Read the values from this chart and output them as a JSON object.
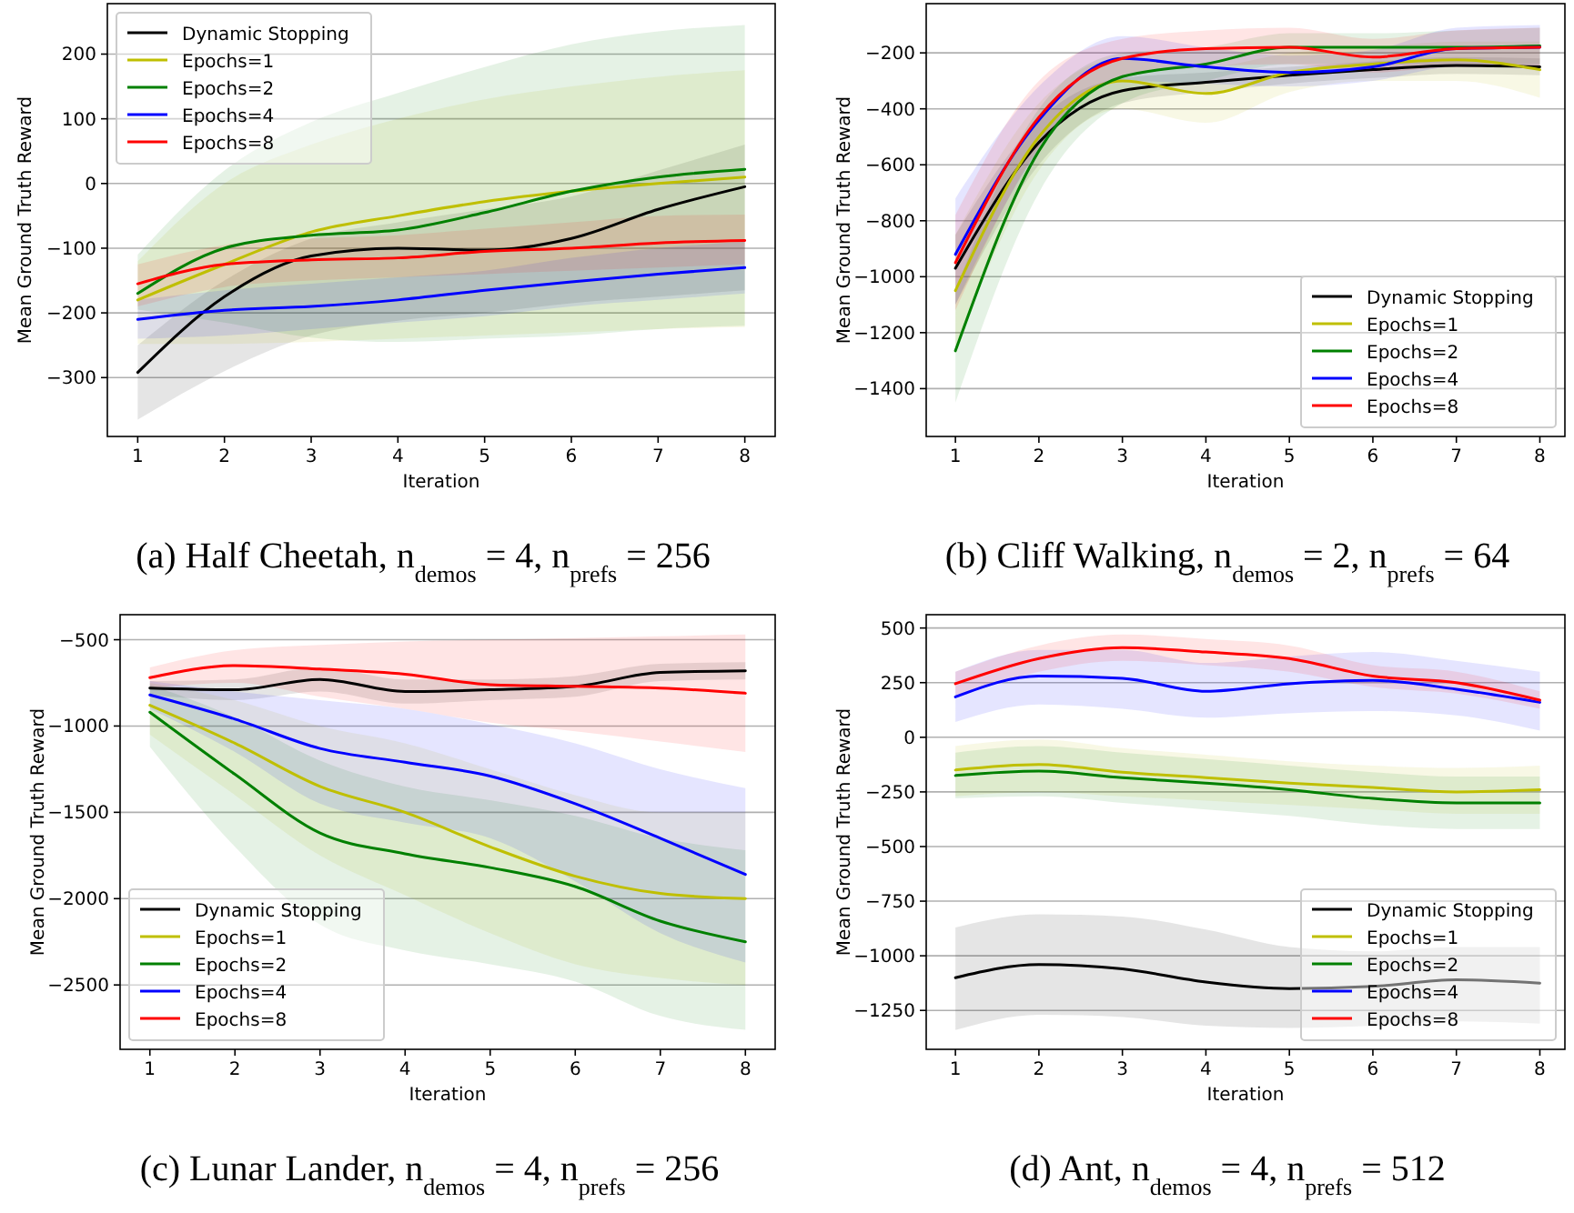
{
  "chart_data": [
    {
      "type": "line",
      "title": "(a) Half Cheetah, n$_{demos}$ = 4, n$_{prefs}$ = 256",
      "xlabel": "Iteration",
      "ylabel": "Mean Ground Truth Reward",
      "x": [
        1,
        2,
        3,
        4,
        5,
        6,
        7,
        8
      ],
      "xlim": [
        0.65,
        8.35
      ],
      "ylim": [
        -391,
        278
      ],
      "xticks": [
        1,
        2,
        3,
        4,
        5,
        6,
        7,
        8
      ],
      "yticks": [
        {
          "value": -300,
          "label": "−300"
        },
        {
          "value": -200,
          "label": "−200"
        },
        {
          "value": -100,
          "label": "−100"
        },
        0,
        100,
        200
      ],
      "grid": "y",
      "legend": "top left",
      "series": [
        {
          "name": "Dynamic Stopping",
          "color": "#000000",
          "values": [
            -292,
            -175,
            -112,
            -100,
            -103,
            -85,
            -40,
            -5
          ],
          "lower": [
            -365,
            -290,
            -235,
            -212,
            -200,
            -185,
            -175,
            -165
          ],
          "upper": [
            -250,
            -150,
            -85,
            -60,
            -40,
            -20,
            20,
            60
          ]
        },
        {
          "name": "Epochs=1",
          "color": "#bfbf00",
          "values": [
            -180,
            -125,
            -75,
            -50,
            -28,
            -12,
            0,
            10
          ],
          "lower": [
            -248,
            -248,
            -245,
            -240,
            -235,
            -230,
            -225,
            -222
          ],
          "upper": [
            -120,
            0,
            60,
            100,
            130,
            150,
            165,
            175
          ]
        },
        {
          "name": "Epochs=2",
          "color": "#008000",
          "values": [
            -170,
            -100,
            -80,
            -72,
            -45,
            -12,
            10,
            22
          ],
          "lower": [
            -195,
            -215,
            -238,
            -245,
            -240,
            -235,
            -225,
            -220
          ],
          "upper": [
            -110,
            20,
            95,
            140,
            180,
            215,
            235,
            245
          ]
        },
        {
          "name": "Epochs=4",
          "color": "#0000ff",
          "values": [
            -210,
            -196,
            -190,
            -180,
            -165,
            -152,
            -140,
            -130
          ],
          "lower": [
            -240,
            -235,
            -225,
            -215,
            -205,
            -190,
            -180,
            -170
          ],
          "upper": [
            -180,
            -165,
            -155,
            -145,
            -135,
            -115,
            -100,
            -90
          ]
        },
        {
          "name": "Epochs=8",
          "color": "#ff0000",
          "values": [
            -155,
            -125,
            -118,
            -115,
            -105,
            -100,
            -92,
            -88
          ],
          "lower": [
            -190,
            -160,
            -150,
            -145,
            -140,
            -135,
            -130,
            -125
          ],
          "upper": [
            -125,
            -95,
            -85,
            -80,
            -70,
            -60,
            -50,
            -48
          ]
        }
      ]
    },
    {
      "type": "line",
      "title": "(b) Cliff Walking, n$_{demos}$ = 2, n$_{prefs}$ = 64",
      "xlabel": "Iteration",
      "ylabel": "Mean Ground Truth Reward",
      "x": [
        1,
        2,
        3,
        4,
        5,
        6,
        7,
        8
      ],
      "xlim": [
        0.65,
        8.3
      ],
      "ylim": [
        -1571,
        -24
      ],
      "xticks": [
        1,
        2,
        3,
        4,
        5,
        6,
        7,
        8
      ],
      "yticks": [
        {
          "value": -1400,
          "label": "−1400"
        },
        {
          "value": -1200,
          "label": "−1200"
        },
        {
          "value": -1000,
          "label": "−1000"
        },
        {
          "value": -800,
          "label": "−800"
        },
        {
          "value": -600,
          "label": "−600"
        },
        {
          "value": -400,
          "label": "−400"
        },
        {
          "value": -200,
          "label": "−200"
        }
      ],
      "grid": "y",
      "legend": "bottom right",
      "series": [
        {
          "name": "Dynamic Stopping",
          "color": "#000000",
          "values": [
            -970,
            -520,
            -335,
            -305,
            -280,
            -260,
            -245,
            -250
          ],
          "lower": [
            -1100,
            -600,
            -380,
            -340,
            -310,
            -290,
            -275,
            -280
          ],
          "upper": [
            -850,
            -440,
            -290,
            -270,
            -250,
            -230,
            -215,
            -220
          ]
        },
        {
          "name": "Epochs=1",
          "color": "#bfbf00",
          "values": [
            -1050,
            -500,
            -300,
            -345,
            -270,
            -240,
            -225,
            -260
          ],
          "lower": [
            -1250,
            -620,
            -400,
            -450,
            -340,
            -300,
            -300,
            -360
          ],
          "upper": [
            -850,
            -380,
            -220,
            -250,
            -200,
            -180,
            -160,
            -160
          ]
        },
        {
          "name": "Epochs=2",
          "color": "#008000",
          "values": [
            -1265,
            -550,
            -285,
            -240,
            -180,
            -180,
            -180,
            -175
          ],
          "lower": [
            -1450,
            -700,
            -380,
            -300,
            -240,
            -240,
            -240,
            -240
          ],
          "upper": [
            -1050,
            -400,
            -200,
            -180,
            -130,
            -130,
            -120,
            -110
          ]
        },
        {
          "name": "Epochs=4",
          "color": "#0000ff",
          "values": [
            -920,
            -440,
            -220,
            -250,
            -270,
            -250,
            -185,
            -180
          ],
          "lower": [
            -1100,
            -550,
            -300,
            -310,
            -320,
            -300,
            -250,
            -250
          ],
          "upper": [
            -720,
            -320,
            -140,
            -180,
            -210,
            -190,
            -110,
            -100
          ]
        },
        {
          "name": "Epochs=8",
          "color": "#ff0000",
          "values": [
            -950,
            -430,
            -220,
            -185,
            -180,
            -215,
            -185,
            -180
          ],
          "lower": [
            -1120,
            -540,
            -290,
            -250,
            -240,
            -270,
            -250,
            -250
          ],
          "upper": [
            -780,
            -300,
            -150,
            -120,
            -110,
            -150,
            -120,
            -110
          ]
        }
      ]
    },
    {
      "type": "line",
      "title": "(c) Lunar Lander, n$_{demos}$ = 4, n$_{prefs}$ = 256",
      "xlabel": "Iteration",
      "ylabel": "Mean Ground Truth Reward",
      "x": [
        1,
        2,
        3,
        4,
        5,
        6,
        7,
        8
      ],
      "xlim": [
        0.65,
        8.35
      ],
      "ylim": [
        -2873,
        -355
      ],
      "xticks": [
        1,
        2,
        3,
        4,
        5,
        6,
        7,
        8
      ],
      "yticks": [
        {
          "value": -2500,
          "label": "−2500"
        },
        {
          "value": -2000,
          "label": "−2000"
        },
        {
          "value": -1500,
          "label": "−1500"
        },
        {
          "value": -1000,
          "label": "−1000"
        },
        {
          "value": -500,
          "label": "−500"
        }
      ],
      "grid": "y",
      "legend": "bottom left",
      "series": [
        {
          "name": "Dynamic Stopping",
          "color": "#000000",
          "values": [
            -780,
            -790,
            -730,
            -800,
            -790,
            -770,
            -690,
            -680
          ],
          "lower": [
            -820,
            -850,
            -800,
            -870,
            -850,
            -830,
            -740,
            -730
          ],
          "upper": [
            -740,
            -730,
            -660,
            -730,
            -730,
            -710,
            -640,
            -630
          ]
        },
        {
          "name": "Epochs=1",
          "color": "#bfbf00",
          "values": [
            -880,
            -1100,
            -1350,
            -1500,
            -1700,
            -1870,
            -1970,
            -2000
          ],
          "lower": [
            -1050,
            -1400,
            -1750,
            -1980,
            -2200,
            -2380,
            -2460,
            -2500
          ],
          "upper": [
            -750,
            -850,
            -1000,
            -1100,
            -1250,
            -1400,
            -1500,
            -1500
          ]
        },
        {
          "name": "Epochs=2",
          "color": "#008000",
          "values": [
            -920,
            -1280,
            -1620,
            -1740,
            -1820,
            -1930,
            -2130,
            -2250
          ],
          "lower": [
            -1120,
            -1700,
            -2150,
            -2300,
            -2380,
            -2480,
            -2680,
            -2760
          ],
          "upper": [
            -760,
            -950,
            -1200,
            -1350,
            -1430,
            -1520,
            -1650,
            -1720
          ]
        },
        {
          "name": "Epochs=4",
          "color": "#0000ff",
          "values": [
            -820,
            -960,
            -1130,
            -1210,
            -1290,
            -1450,
            -1650,
            -1860
          ],
          "lower": [
            -900,
            -1150,
            -1450,
            -1560,
            -1650,
            -1900,
            -2200,
            -2370
          ],
          "upper": [
            -740,
            -800,
            -850,
            -900,
            -990,
            -1100,
            -1250,
            -1360
          ]
        },
        {
          "name": "Epochs=8",
          "color": "#ff0000",
          "values": [
            -720,
            -650,
            -670,
            -700,
            -760,
            -770,
            -780,
            -810
          ],
          "lower": [
            -780,
            -750,
            -830,
            -900,
            -980,
            -1030,
            -1090,
            -1150
          ],
          "upper": [
            -660,
            -560,
            -530,
            -510,
            -500,
            -490,
            -480,
            -470
          ]
        }
      ]
    },
    {
      "type": "line",
      "title": "(d) Ant, n$_{demos}$ = 4, n$_{prefs}$ = 512",
      "xlabel": "Iteration",
      "ylabel": "Mean Ground Truth Reward",
      "x": [
        1,
        2,
        3,
        4,
        5,
        6,
        7,
        8
      ],
      "xlim": [
        0.65,
        8.3
      ],
      "ylim": [
        -1428,
        561
      ],
      "xticks": [
        1,
        2,
        3,
        4,
        5,
        6,
        7,
        8
      ],
      "yticks": [
        {
          "value": -1250,
          "label": "−1250"
        },
        {
          "value": -1000,
          "label": "−1000"
        },
        {
          "value": -750,
          "label": "−750"
        },
        {
          "value": -500,
          "label": "−500"
        },
        {
          "value": -250,
          "label": "−250"
        },
        0,
        250,
        500
      ],
      "grid": "y",
      "legend": "bottom right",
      "series": [
        {
          "name": "Dynamic Stopping",
          "color": "#000000",
          "values": [
            -1100,
            -1040,
            -1060,
            -1120,
            -1150,
            -1140,
            -1110,
            -1125
          ],
          "lower": [
            -1340,
            -1270,
            -1280,
            -1320,
            -1330,
            -1320,
            -1300,
            -1310
          ],
          "upper": [
            -870,
            -810,
            -820,
            -880,
            -960,
            -980,
            -960,
            -960
          ]
        },
        {
          "name": "Epochs=1",
          "color": "#bfbf00",
          "values": [
            -150,
            -125,
            -160,
            -185,
            -210,
            -230,
            -250,
            -240
          ],
          "lower": [
            -270,
            -250,
            -270,
            -290,
            -310,
            -330,
            -350,
            -350
          ],
          "upper": [
            -40,
            -10,
            -50,
            -80,
            -110,
            -130,
            -140,
            -130
          ]
        },
        {
          "name": "Epochs=2",
          "color": "#008000",
          "values": [
            -175,
            -155,
            -185,
            -210,
            -240,
            -280,
            -300,
            -300
          ],
          "lower": [
            -280,
            -270,
            -300,
            -330,
            -360,
            -400,
            -420,
            -420
          ],
          "upper": [
            -70,
            -40,
            -70,
            -100,
            -130,
            -160,
            -180,
            -180
          ]
        },
        {
          "name": "Epochs=4",
          "color": "#0000ff",
          "values": [
            185,
            280,
            270,
            210,
            245,
            260,
            220,
            160
          ],
          "lower": [
            70,
            150,
            130,
            90,
            110,
            120,
            100,
            30
          ],
          "upper": [
            300,
            400,
            400,
            340,
            370,
            390,
            350,
            300
          ]
        },
        {
          "name": "Epochs=8",
          "color": "#ff0000",
          "values": [
            245,
            360,
            410,
            390,
            360,
            280,
            250,
            170
          ],
          "lower": [
            190,
            300,
            350,
            330,
            300,
            230,
            200,
            130
          ],
          "upper": [
            300,
            420,
            470,
            450,
            420,
            330,
            300,
            210
          ]
        }
      ]
    }
  ]
}
